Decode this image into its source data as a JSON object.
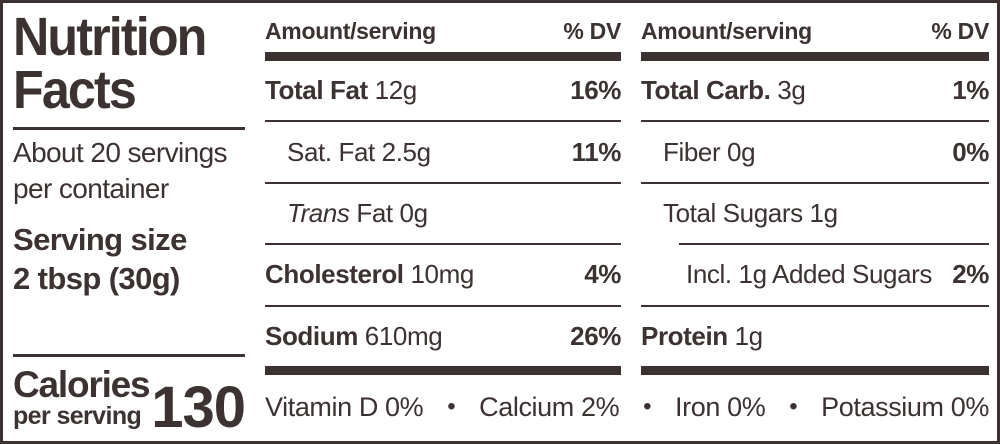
{
  "label": {
    "title_line1": "Nutrition",
    "title_line2": "Facts",
    "servings_line1": "About 20 servings",
    "servings_line2": "per container",
    "serving_size_label": "Serving size",
    "serving_size_value": "2 tbsp (30g)",
    "calories_label": "Calories",
    "calories_sublabel": "per serving",
    "calories_value": "130",
    "ink_color": "#3b3231"
  },
  "cols": [
    {
      "header_left": "Amount/serving",
      "header_right": "% DV",
      "rows": [
        {
          "bold": "Total Fat",
          "italic": "",
          "text": " 12g",
          "dv": "16%"
        },
        {
          "bold": "",
          "italic": "",
          "text": "Sat. Fat 2.5g",
          "dv": "11%"
        },
        {
          "bold": "",
          "italic": "Trans",
          "text": " Fat 0g",
          "dv": ""
        },
        {
          "bold": "Cholesterol",
          "italic": "",
          "text": " 10mg",
          "dv": "4%"
        },
        {
          "bold": "Sodium",
          "italic": "",
          "text": " 610mg",
          "dv": "26%"
        }
      ]
    },
    {
      "header_left": "Amount/serving",
      "header_right": "% DV",
      "rows": [
        {
          "bold": "Total Carb.",
          "italic": "",
          "text": " 3g",
          "dv": "1%"
        },
        {
          "bold": "",
          "italic": "",
          "text": "Fiber 0g",
          "dv": "0%"
        },
        {
          "bold": "",
          "italic": "",
          "text": "Total Sugars 1g",
          "dv": ""
        },
        {
          "bold": "",
          "italic": "",
          "text": "Incl. 1g Added Sugars",
          "dv": "2%"
        },
        {
          "bold": "Protein",
          "italic": "",
          "text": " 1g",
          "dv": ""
        }
      ]
    }
  ],
  "footnote": {
    "bullet": "•",
    "items": [
      "Vitamin D 0%",
      "Calcium 2%",
      "Iron 0%",
      "Potassium 0%"
    ]
  }
}
